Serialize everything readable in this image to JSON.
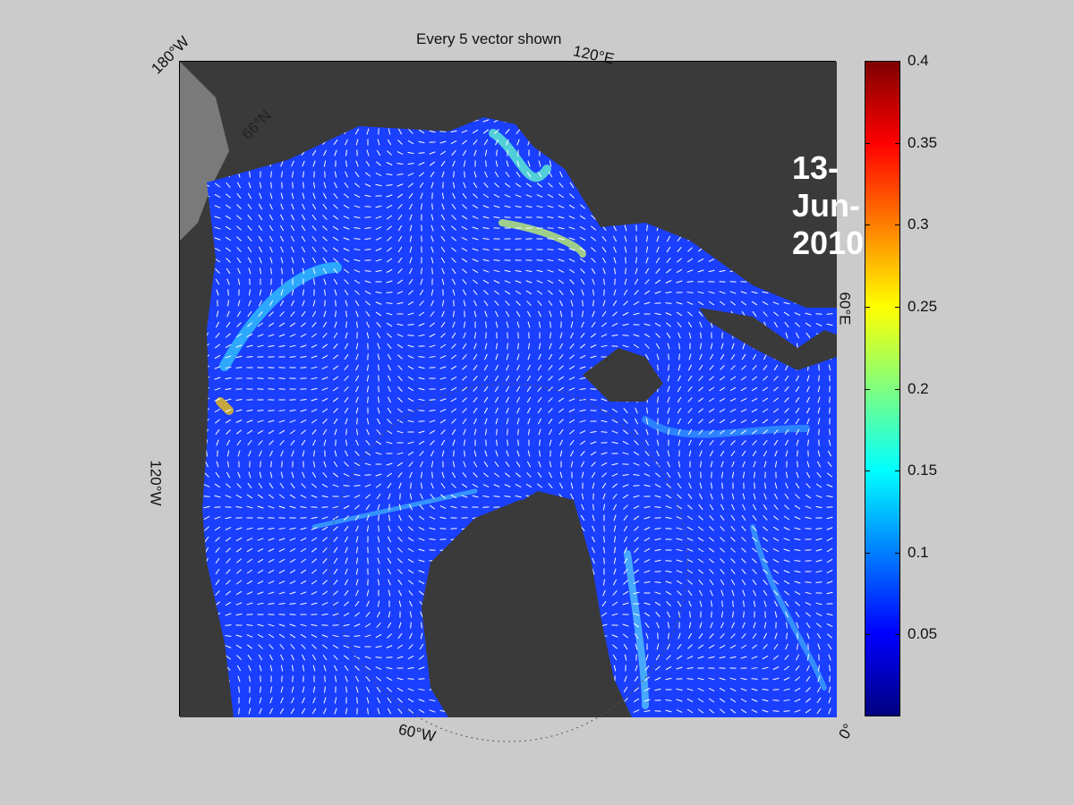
{
  "figure": {
    "title": "Every 5 vector shown",
    "date": "13-Jun-2010"
  },
  "map_labels": {
    "lon_180w": "180°W",
    "lon_120e": "120°E",
    "lon_60e": "60°E",
    "lon_120w": "120°W",
    "lon_60w": "60°W",
    "lon_0": "0°",
    "lat_66n": "66°N"
  },
  "colorbar": {
    "colormap": "jet",
    "min": 0,
    "max": 0.4,
    "tick_labels": [
      "0.4",
      "0.35",
      "0.3",
      "0.25",
      "0.2",
      "0.15",
      "0.1",
      "0.05"
    ],
    "tick_values": [
      0.4,
      0.35,
      0.3,
      0.25,
      0.2,
      0.15,
      0.1,
      0.05
    ],
    "colors": [
      "#7f0000",
      "#ff0000",
      "#ff7f00",
      "#ffff00",
      "#7fff7f",
      "#00ffff",
      "#007fff",
      "#0000ff",
      "#00007f"
    ]
  },
  "colors": {
    "land": "#3a3a3a",
    "ocean_low": "#1a3fff",
    "vectors": "#ffffff",
    "background": "#cbcbcb"
  }
}
